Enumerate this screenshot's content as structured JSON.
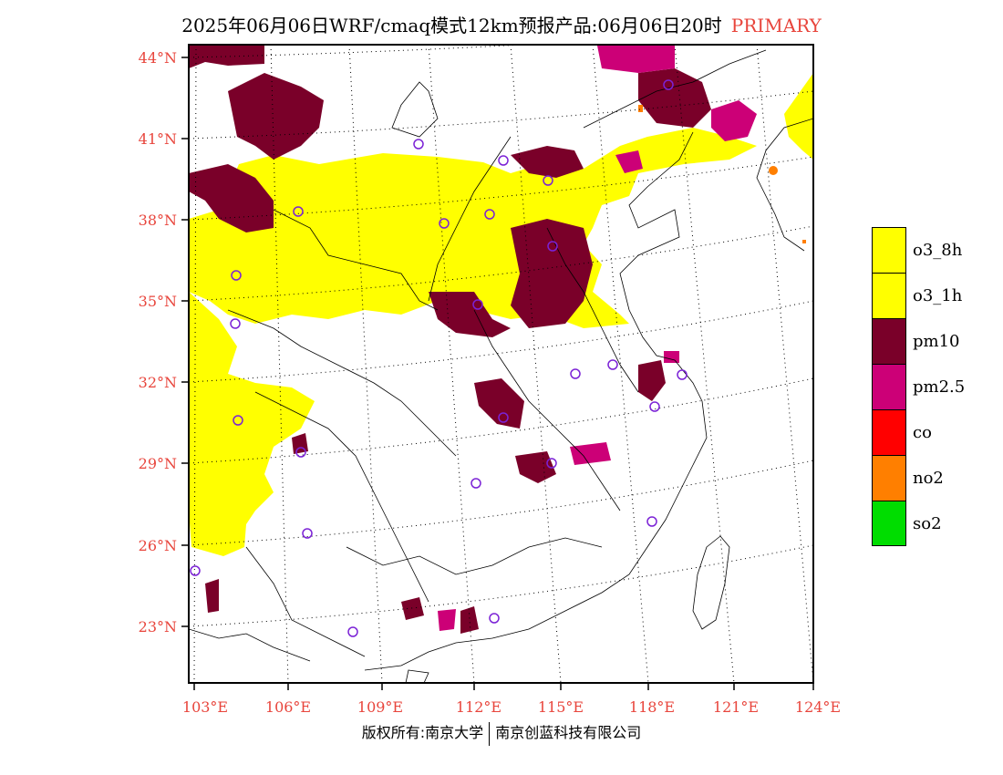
{
  "title": {
    "text": "2025年06月06日WRF/cmaq模式12km预报产品:06月06日20时",
    "tag": "PRIMARY",
    "tag_color": "#e8453c"
  },
  "axes": {
    "lat_labels": [
      "44°N",
      "41°N",
      "38°N",
      "35°N",
      "32°N",
      "29°N",
      "26°N",
      "23°N"
    ],
    "lon_labels": [
      "103°E",
      "106°E",
      "109°E",
      "112°E",
      "115°E",
      "118°E",
      "121°E",
      "124°E"
    ],
    "label_color": "#e8453c"
  },
  "legend": {
    "items": [
      {
        "label": "o3_8h",
        "color": "#ffff00"
      },
      {
        "label": "o3_1h",
        "color": "#ffff00"
      },
      {
        "label": "pm10",
        "color": "#7a0029"
      },
      {
        "label": "pm2.5",
        "color": "#cc0077"
      },
      {
        "label": "co",
        "color": "#ff0000"
      },
      {
        "label": "no2",
        "color": "#ff7f00"
      },
      {
        "label": "so2",
        "color": "#00dd00"
      }
    ]
  },
  "copyright": {
    "left": "版权所有:南京大学",
    "right": "南京创蓝科技有限公司"
  },
  "colors": {
    "o3": "#ffff00",
    "pm10": "#7a0029",
    "pm25": "#cc0077",
    "no2": "#ff7f00",
    "station_circle": "#7b22d6"
  }
}
